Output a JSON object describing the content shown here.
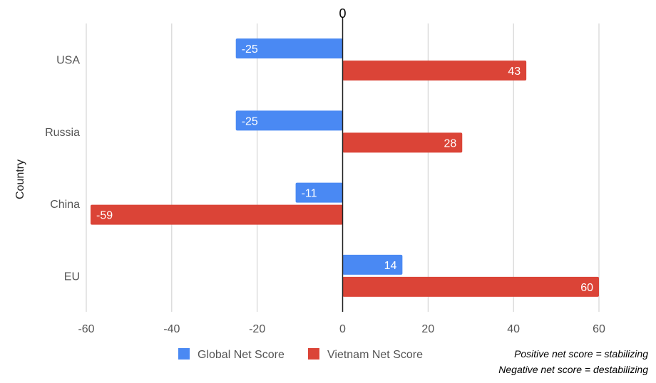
{
  "chart_data": {
    "type": "bar",
    "orientation": "horizontal",
    "categories": [
      "USA",
      "Russia",
      "China",
      "EU"
    ],
    "series": [
      {
        "name": "Global Net Score",
        "values": [
          -25,
          -25,
          -11,
          14
        ],
        "color": "#4A89F3"
      },
      {
        "name": "Vietnam Net Score",
        "values": [
          43,
          28,
          -59,
          60
        ],
        "color": "#DB4437"
      }
    ],
    "ylabel": "Country",
    "xlim": [
      -60,
      60
    ],
    "xticks": [
      "-60",
      "-40",
      "-20",
      "0",
      "20",
      "40",
      "60"
    ],
    "zero_label": "0",
    "grid": true,
    "legend_position": "bottom"
  },
  "notes": [
    "Positive net score = stabilizing",
    "Negative net score = destabilizing"
  ]
}
